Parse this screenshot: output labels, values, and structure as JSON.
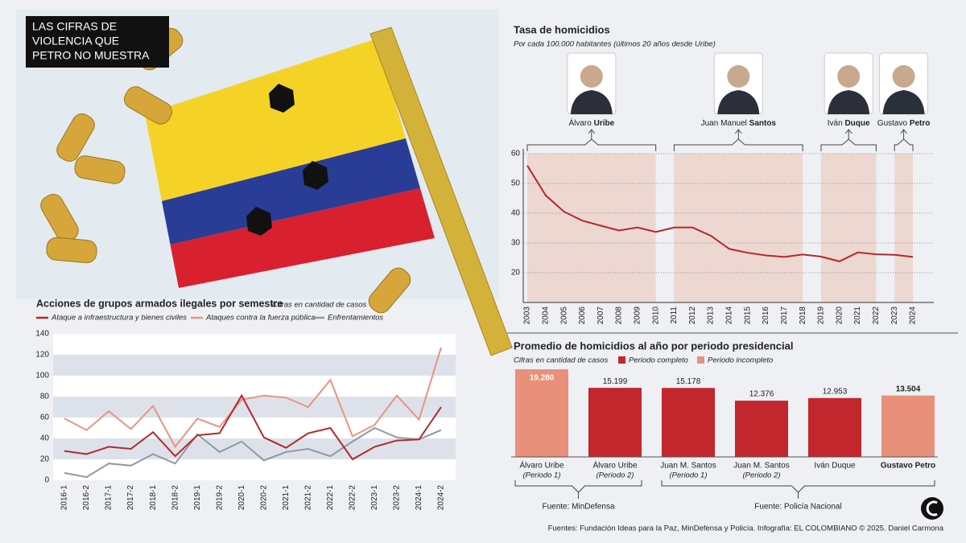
{
  "headline": [
    "LAS CIFRAS DE",
    "VIOLENCIA QUE",
    "PETRO NO MUESTRA"
  ],
  "credits": "Fuentes: Fundación Ideas para la Paz, MinDefensa y Policía. Infografía: EL COLOMBIANO © 2025. Daniel Carmona",
  "chart_data": [
    {
      "type": "line",
      "title": "Tasa de homicidios",
      "subtitle": "Por cada 100.000 habitantes (últimos 20 años desde Uribe)",
      "x": [
        2003,
        2004,
        2005,
        2006,
        2007,
        2008,
        2009,
        2010,
        2011,
        2012,
        2013,
        2014,
        2015,
        2016,
        2017,
        2018,
        2019,
        2020,
        2021,
        2022,
        2023,
        2024
      ],
      "values": [
        56,
        46,
        40.5,
        37.5,
        35.8,
        34.2,
        35.2,
        33.7,
        35.2,
        35.2,
        32.4,
        28,
        26.7,
        25.8,
        25.3,
        26.1,
        25.4,
        23.8,
        26.8,
        26.2,
        26,
        25.3
      ],
      "color": "#b5282c",
      "xlim": [
        2003,
        2024
      ],
      "ylim": [
        10,
        60
      ],
      "yticks": [
        20,
        30,
        40,
        50,
        60
      ],
      "grid": true,
      "periods": [
        {
          "given": "Álvaro",
          "surname": "Uribe",
          "start": 2003,
          "end": 2010
        },
        {
          "given": "Juan Manuel",
          "surname": "Santos",
          "start": 2011,
          "end": 2018
        },
        {
          "given": "Iván",
          "surname": "Duque",
          "start": 2019,
          "end": 2022
        },
        {
          "given": "Gustavo",
          "surname": "Petro",
          "start": 2023,
          "end": 2024
        }
      ]
    },
    {
      "type": "bar",
      "title": "Promedio de homicidios al año por periodo presidencial",
      "subtitle": "Cifras en cantidad de casos",
      "categories": [
        {
          "name": "Álvaro Uribe",
          "period": "(Periodo 1)"
        },
        {
          "name": "Álvaro Uribe",
          "period": "(Periodo 2)"
        },
        {
          "name": "Juan M. Santos",
          "period": "(Periodo 1)"
        },
        {
          "name": "Juan M. Santos",
          "period": "(Periodo 2)"
        },
        {
          "name": "Iván Duque"
        },
        {
          "name": "Gustavo Petro"
        }
      ],
      "series": [
        {
          "name": "Periodo completo",
          "color": "#c1272d",
          "values": [
            null,
            15199,
            15178,
            12376,
            12953,
            null
          ],
          "value_labels": [
            null,
            "15.199",
            "15.178",
            "12.376",
            "12.953",
            null
          ]
        },
        {
          "name": "Periodo incompleto",
          "color": "#e8907a",
          "values": [
            19280,
            null,
            null,
            null,
            null,
            13504
          ],
          "value_labels": [
            "19.280",
            null,
            null,
            null,
            null,
            "13.504"
          ]
        }
      ],
      "ylim": [
        0,
        20000
      ],
      "sources": [
        "Fuente: MinDefensa",
        "Fuente: Policía Nacional"
      ]
    },
    {
      "type": "line",
      "title": "Acciones de grupos armados ilegales por semestre",
      "subtitle": "Cifras en cantidad de casos",
      "categories": [
        "2016-1",
        "2016-2",
        "2017-1",
        "2017-2",
        "2018-1",
        "2018-2",
        "2019-1",
        "2019-2",
        "2020-1",
        "2020-2",
        "2021-1",
        "2021-2",
        "2022-1",
        "2022-2",
        "2023-1",
        "2023-2",
        "2024-1",
        "2024-2"
      ],
      "series": [
        {
          "name": "Ataque a infraestructura y bienes civiles",
          "color": "#b5282c",
          "values": [
            28,
            25,
            32,
            30,
            46,
            23,
            43,
            45,
            81,
            41,
            31,
            45,
            50,
            20,
            32,
            38,
            39,
            70
          ]
        },
        {
          "name": "Ataques contra la fuerza pública",
          "color": "#e8957e",
          "values": [
            59,
            48,
            66,
            49,
            71,
            32,
            59,
            51,
            77,
            81,
            79,
            70,
            96,
            42,
            53,
            81,
            58,
            127
          ]
        },
        {
          "name": "Enfrentamientos",
          "color": "#8f9aa3",
          "values": [
            7,
            3,
            16,
            14,
            25,
            16,
            44,
            27,
            37,
            19,
            27,
            30,
            23,
            37,
            50,
            41,
            39,
            48
          ]
        }
      ],
      "ylim": [
        0,
        140
      ],
      "yticks": [
        0,
        20,
        40,
        60,
        80,
        100,
        120,
        140
      ],
      "grid": true
    }
  ]
}
